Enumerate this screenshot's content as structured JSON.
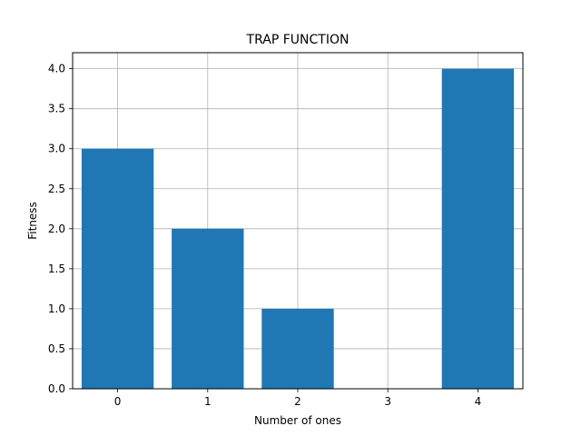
{
  "chart_data": {
    "type": "bar",
    "title": "TRAP FUNCTION",
    "xlabel": "Number of ones",
    "ylabel": "Fitness",
    "categories": [
      "0",
      "1",
      "2",
      "3",
      "4"
    ],
    "x": [
      0,
      1,
      2,
      3,
      4
    ],
    "values": [
      3.0,
      2.0,
      1.0,
      0.0,
      4.0
    ],
    "xlim": [
      -0.5,
      4.5
    ],
    "ylim": [
      0.0,
      4.2
    ],
    "yticks": [
      0.0,
      0.5,
      1.0,
      1.5,
      2.0,
      2.5,
      3.0,
      3.5,
      4.0
    ],
    "ytick_labels": [
      "0.0",
      "0.5",
      "1.0",
      "1.5",
      "2.0",
      "2.5",
      "3.0",
      "3.5",
      "4.0"
    ],
    "bar_color": "#1f77b4",
    "grid": true,
    "grid_color": "#b0b0b0"
  }
}
